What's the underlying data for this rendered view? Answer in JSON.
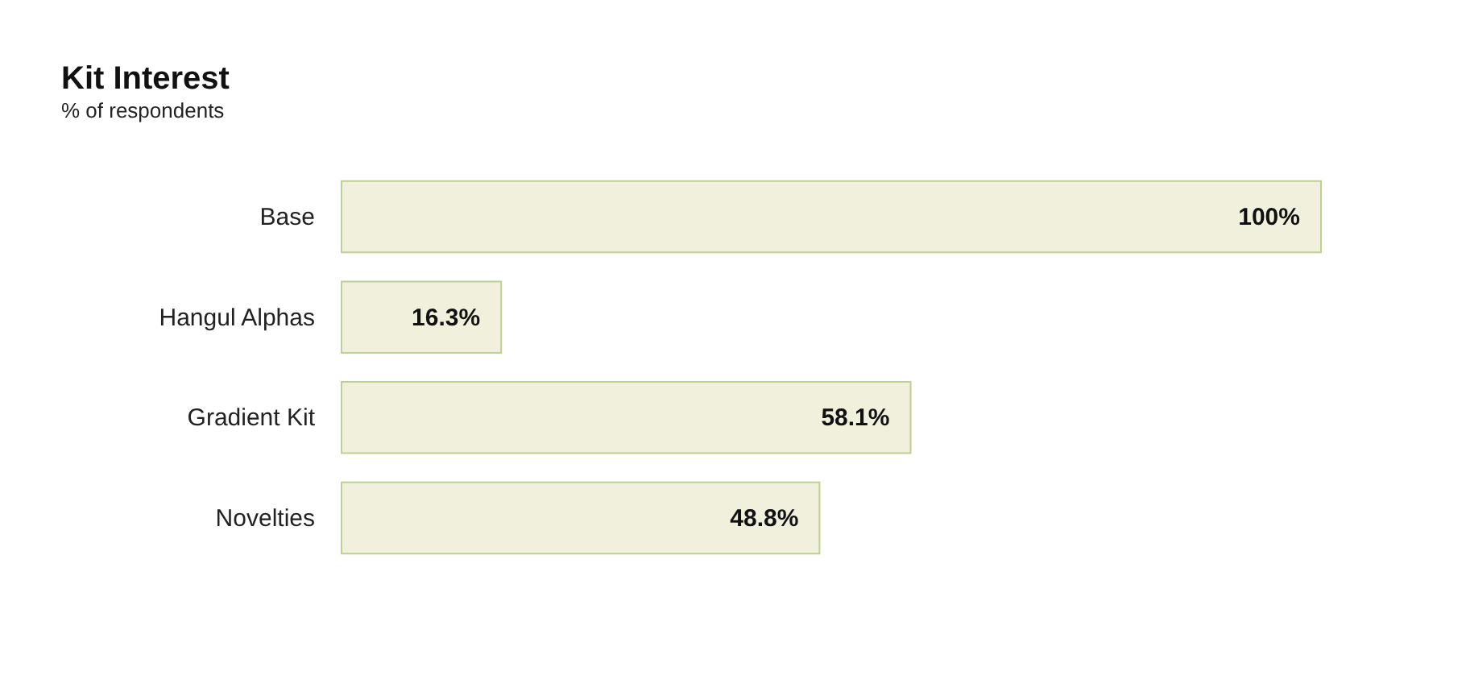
{
  "chart_data": {
    "type": "bar",
    "orientation": "horizontal",
    "title": "Kit Interest",
    "subtitle": "% of respondents",
    "categories": [
      "Base",
      "Hangul Alphas",
      "Gradient Kit",
      "Novelties"
    ],
    "values": [
      100,
      16.3,
      58.1,
      48.8
    ],
    "value_labels": [
      "100%",
      "16.3%",
      "58.1%",
      "48.8%"
    ],
    "color": "#f0f0dc"
  }
}
